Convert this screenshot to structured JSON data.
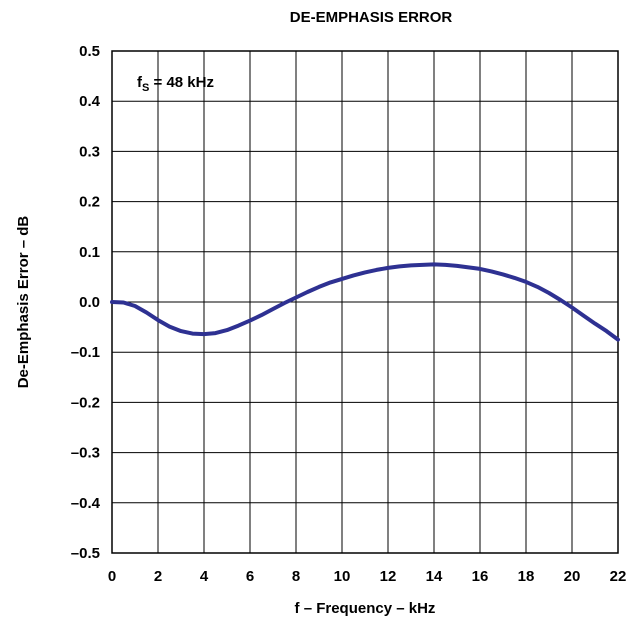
{
  "chart_data": {
    "type": "line",
    "title": "DE-EMPHASIS ERROR",
    "xlabel": "f – Frequency – kHz",
    "ylabel": "De-Emphasis Error – dB",
    "xlim": [
      0,
      22
    ],
    "ylim": [
      -0.5,
      0.5
    ],
    "x_ticks": [
      0,
      2,
      4,
      6,
      8,
      10,
      12,
      14,
      16,
      18,
      20,
      22
    ],
    "x_tick_labels": [
      "0",
      "2",
      "4",
      "6",
      "8",
      "10",
      "12",
      "14",
      "16",
      "18",
      "20",
      "22"
    ],
    "y_ticks": [
      -0.5,
      -0.4,
      -0.3,
      -0.2,
      -0.1,
      0.0,
      0.1,
      0.2,
      0.3,
      0.4,
      0.5
    ],
    "y_tick_labels": [
      "–0.5",
      "–0.4",
      "–0.3",
      "–0.2",
      "–0.1",
      "0.0",
      "0.1",
      "0.2",
      "0.3",
      "0.4",
      "0.5"
    ],
    "grid": true,
    "annotation": {
      "prefix": "f",
      "subscript": "S",
      "suffix": " = 48 kHz"
    },
    "series": [
      {
        "color": "#2e3192",
        "x": [
          0,
          0.5,
          1,
          1.5,
          2,
          2.5,
          3,
          3.5,
          4,
          4.5,
          5,
          5.5,
          6,
          6.5,
          7,
          7.5,
          8,
          8.5,
          9,
          9.5,
          10,
          10.5,
          11,
          11.5,
          12,
          12.5,
          13,
          13.5,
          14,
          14.5,
          15,
          15.5,
          16,
          16.5,
          17,
          17.5,
          18,
          18.5,
          19,
          19.5,
          20,
          20.5,
          21,
          21.5,
          22
        ],
        "y": [
          0.0,
          -0.001,
          -0.008,
          -0.021,
          -0.036,
          -0.049,
          -0.058,
          -0.063,
          -0.064,
          -0.062,
          -0.056,
          -0.047,
          -0.037,
          -0.026,
          -0.014,
          -0.002,
          0.009,
          0.02,
          0.03,
          0.039,
          0.046,
          0.053,
          0.059,
          0.064,
          0.068,
          0.071,
          0.073,
          0.074,
          0.075,
          0.074,
          0.072,
          0.069,
          0.066,
          0.061,
          0.055,
          0.048,
          0.04,
          0.03,
          0.018,
          0.004,
          -0.011,
          -0.027,
          -0.043,
          -0.058,
          -0.075
        ]
      }
    ]
  }
}
